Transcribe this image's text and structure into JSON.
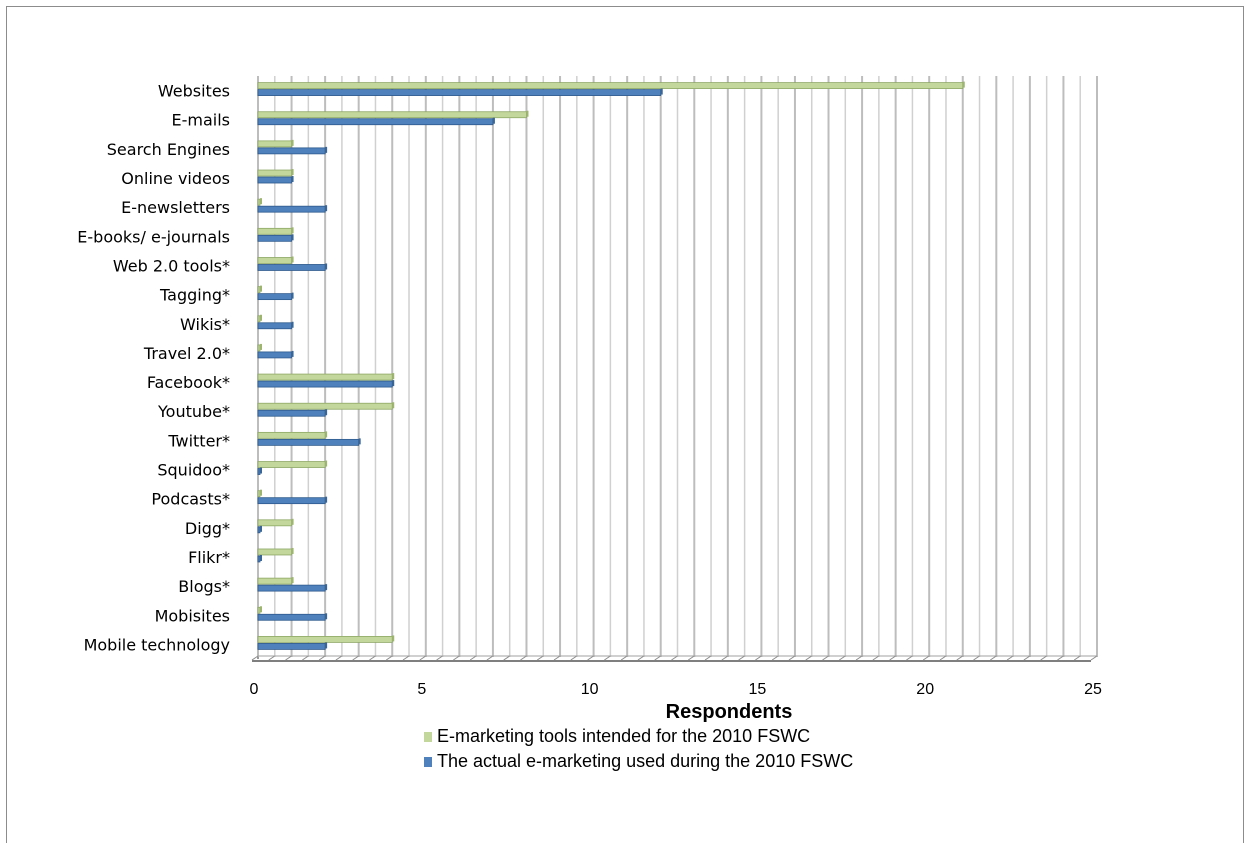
{
  "chart_data": {
    "type": "bar",
    "orientation": "horizontal",
    "categories": [
      "Websites",
      "E-mails",
      "Search Engines",
      "Online videos",
      "E-newsletters",
      "E-books/ e-journals",
      "Web 2.0 tools*",
      "Tagging*",
      "Wikis*",
      "Travel 2.0*",
      "Facebook*",
      "Youtube*",
      "Twitter*",
      "Squidoo*",
      "Podcasts*",
      "Digg*",
      "Flikr*",
      "Blogs*",
      "Mobisites",
      "Mobile technology"
    ],
    "series": [
      {
        "name": "E-marketing tools intended for the 2010 FSWC",
        "color": "#c3d69b",
        "values": [
          21,
          8,
          1,
          1,
          0,
          1,
          1,
          0,
          0,
          0,
          4,
          4,
          2,
          2,
          0,
          1,
          1,
          1,
          0,
          4
        ]
      },
      {
        "name": "The actual e-marketing used during the 2010 FSWC",
        "color": "#4f81bd",
        "values": [
          12,
          7,
          2,
          1,
          2,
          1,
          2,
          1,
          1,
          1,
          4,
          2,
          3,
          0,
          2,
          0,
          0,
          2,
          2,
          2
        ]
      }
    ],
    "xlabel": "Respondents",
    "xlim": [
      0,
      25
    ],
    "xticks": [
      "0",
      "5",
      "10",
      "15",
      "20",
      "25"
    ],
    "grid": true,
    "legend_position": "bottom"
  }
}
